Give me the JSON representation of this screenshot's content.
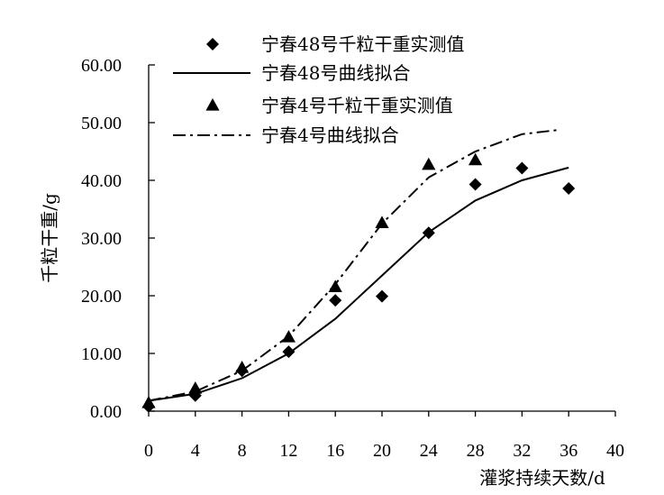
{
  "chart_data": {
    "type": "scatter",
    "xlabel": "灌浆持续天数/d",
    "ylabel": "千粒干重/g",
    "xlim": [
      0,
      40
    ],
    "ylim": [
      0,
      60
    ],
    "x_ticks": [
      0,
      4,
      8,
      12,
      16,
      20,
      24,
      28,
      32,
      36,
      40
    ],
    "y_ticks": [
      "0.00",
      "10.00",
      "20.00",
      "30.00",
      "40.00",
      "50.00",
      "60.00"
    ],
    "grid": false,
    "legend_position": "top",
    "series": [
      {
        "name": "宁春48号千粒干重实测值",
        "kind": "scatter",
        "marker": "diamond",
        "color": "#000000",
        "x": [
          0,
          4,
          8,
          12,
          16,
          20,
          24,
          28,
          32,
          36
        ],
        "y": [
          0.8,
          2.7,
          7.0,
          10.3,
          19.2,
          19.9,
          30.9,
          39.3,
          42.1,
          38.6
        ]
      },
      {
        "name": "宁春48号曲线拟合",
        "kind": "line",
        "dash": "solid",
        "color": "#000000",
        "x": [
          0,
          4,
          8,
          12,
          16,
          20,
          24,
          28,
          32,
          36
        ],
        "y": [
          1.8,
          3.0,
          5.7,
          10.0,
          16.0,
          23.5,
          31.0,
          36.5,
          40.0,
          42.2
        ]
      },
      {
        "name": "宁春4号千粒干重实测值",
        "kind": "scatter",
        "marker": "triangle",
        "color": "#000000",
        "x": [
          0,
          4,
          8,
          12,
          16,
          20,
          24,
          28
        ],
        "y": [
          1.4,
          3.9,
          7.5,
          12.8,
          21.5,
          32.6,
          42.7,
          43.5
        ]
      },
      {
        "name": "宁春4号曲线拟合",
        "kind": "line",
        "dash": "dash-dot",
        "color": "#000000",
        "x": [
          0,
          4,
          8,
          12,
          16,
          20,
          24,
          28,
          32,
          35
        ],
        "y": [
          1.8,
          3.4,
          7.0,
          13.0,
          22.0,
          32.5,
          40.5,
          45.0,
          48.0,
          48.7
        ]
      }
    ]
  }
}
